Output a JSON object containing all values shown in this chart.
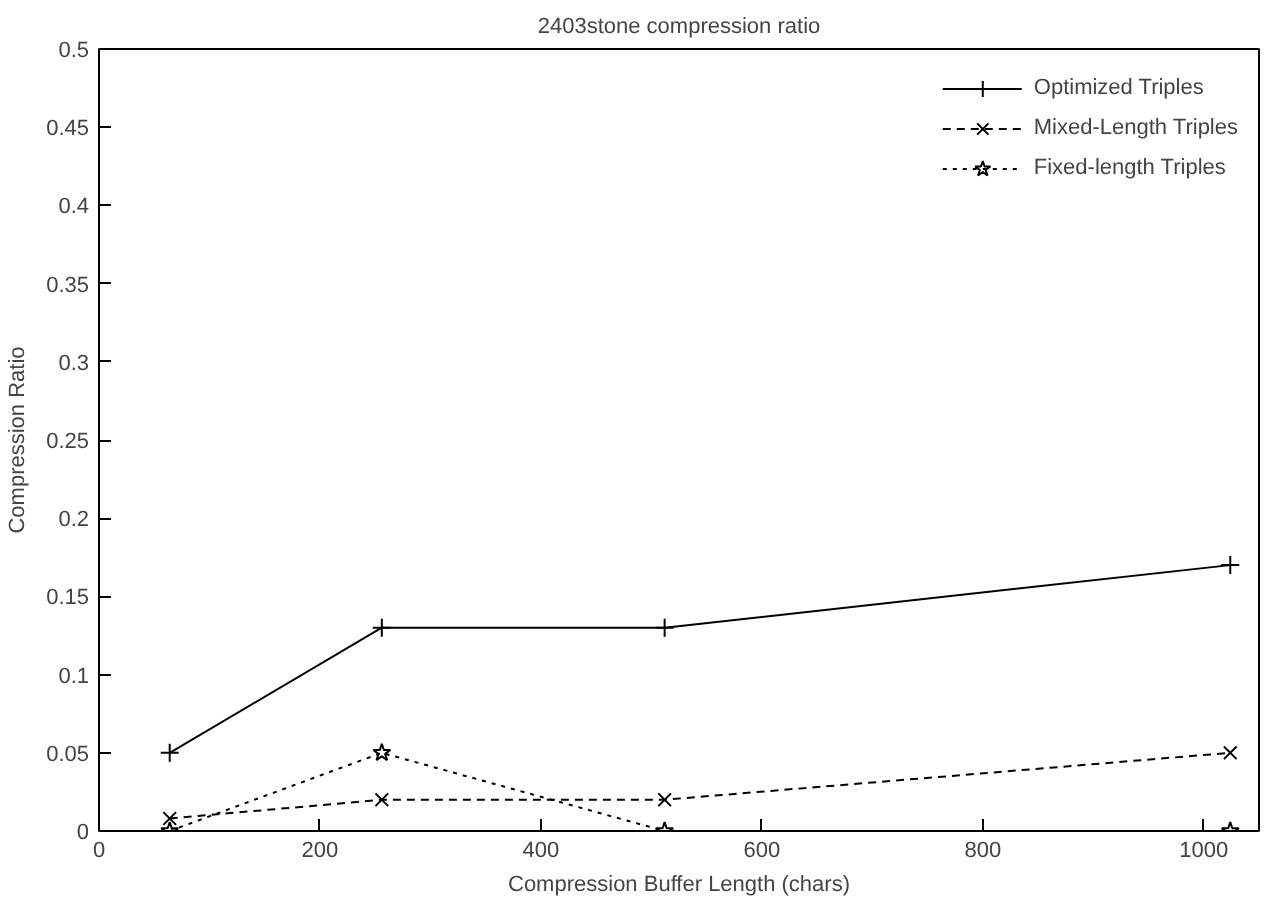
{
  "chart_data": {
    "type": "line",
    "title": "2403stone compression ratio",
    "xlabel": "Compression Buffer Length (chars)",
    "ylabel": "Compression Ratio",
    "x": [
      64,
      256,
      512,
      1024
    ],
    "series": [
      {
        "name": "Optimized Triples",
        "color": "#000000",
        "values": [
          0.05,
          0.13,
          0.13,
          0.17
        ],
        "marker": "cross",
        "line_style": "solid"
      },
      {
        "name": "Mixed-Length Triples",
        "color": "#000000",
        "values": [
          0.008,
          0.02,
          0.02,
          0.05
        ],
        "marker": "x",
        "line_style": "dashed"
      },
      {
        "name": "Fixed-length Triples",
        "color": "#000000",
        "values": [
          0,
          0.05,
          0,
          0
        ],
        "marker": "star",
        "line_style": "dotted"
      }
    ],
    "xlim": [
      0,
      1050
    ],
    "xticks": [
      0,
      200,
      400,
      600,
      800,
      1000
    ],
    "ylim": [
      0,
      0.5
    ],
    "yticks": [
      0,
      0.05,
      0.1,
      0.15,
      0.2,
      0.25,
      0.3,
      0.35,
      0.4,
      0.45,
      0.5
    ],
    "grid": false,
    "legend": "top right"
  }
}
